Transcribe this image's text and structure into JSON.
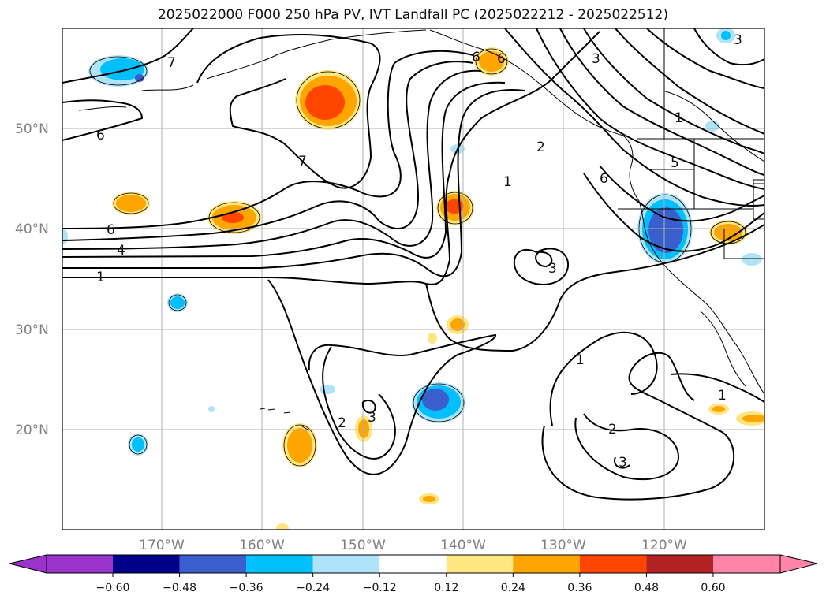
{
  "title": "2025022000 F000 250 hPa PV, IVT Landfall PC (2025022212 - 2025022512)",
  "map": {
    "lat_ticks": [
      "50°N",
      "40°N",
      "30°N",
      "20°N"
    ],
    "lon_ticks": [
      "170°W",
      "160°W",
      "150°W",
      "140°W",
      "130°W",
      "120°W"
    ],
    "lon_range": [
      -180,
      -110
    ],
    "lat_range": [
      10,
      60
    ]
  },
  "colorbar": {
    "levels": [
      "−0.60",
      "−0.48",
      "−0.36",
      "−0.24",
      "−0.12",
      "0.12",
      "0.24",
      "0.36",
      "0.48",
      "0.60"
    ],
    "colors": [
      "#9933cc",
      "#00008b",
      "#3a5fcd",
      "#00bfff",
      "#aee3f8",
      "#ffffff",
      "#ffe680",
      "#ffa500",
      "#ff4500",
      "#b22222",
      "#ff85a8"
    ]
  },
  "contour_labels": [
    "7",
    "6",
    "6",
    "4",
    "1",
    "7",
    "2",
    "1",
    "3",
    "3",
    "1",
    "2",
    "3",
    "1",
    "1",
    "6",
    "5",
    "6",
    "2",
    "3",
    "6",
    "3"
  ]
}
